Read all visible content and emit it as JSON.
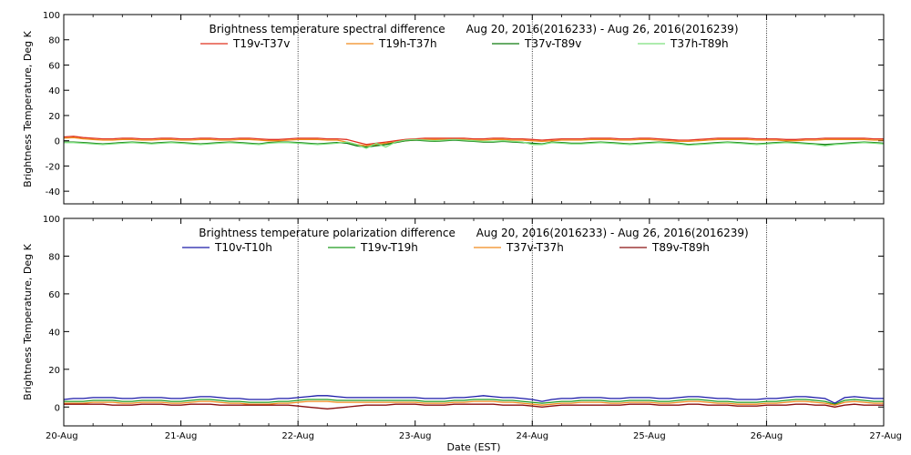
{
  "chart_data": [
    {
      "type": "line",
      "title": "Brightness temperature spectral difference      Aug 20, 2016(2016233) - Aug 26, 2016(2016239)",
      "xlabel": "",
      "ylabel": "Brightness Temperature, Deg K",
      "xlim": [
        0,
        7
      ],
      "ylim": [
        -50,
        100
      ],
      "yticks": [
        -40,
        -20,
        0,
        20,
        40,
        60,
        80,
        100
      ],
      "x_tick_labels": [],
      "day_gridlines": [
        2,
        4,
        6
      ],
      "grid": true,
      "legend_position": "top",
      "series": [
        {
          "name": "T19v-T37v",
          "color": "#e0301e",
          "values": [
            3,
            3.5,
            2.5,
            2,
            1.5,
            1.5,
            2,
            2,
            1.5,
            1.5,
            2,
            2,
            1.5,
            1.5,
            2,
            2,
            1.5,
            1.5,
            2,
            2,
            1.5,
            1,
            1,
            1.5,
            2,
            2,
            2,
            1.5,
            1.5,
            1,
            -1,
            -3,
            -2,
            -1,
            0,
            1,
            1.5,
            2,
            2,
            2,
            2,
            2,
            1.5,
            1.5,
            2,
            2,
            1.5,
            1.5,
            1,
            0.5,
            1,
            1.5,
            1.5,
            1.5,
            2,
            2,
            2,
            1.5,
            1.5,
            2,
            2,
            1.5,
            1,
            0.5,
            0.5,
            1,
            1.5,
            2,
            2,
            2,
            2,
            1.5,
            1.5,
            1.5,
            1,
            1,
            1.5,
            1.5,
            2,
            2,
            2,
            2,
            2,
            1.5,
            1.5
          ]
        },
        {
          "name": "T19h-T37h",
          "color": "#f08a1c",
          "values": [
            2,
            2.5,
            1.5,
            1,
            0.5,
            0.5,
            1,
            1,
            0.5,
            0.5,
            1,
            1,
            0.5,
            0.5,
            1,
            1,
            0.5,
            0.5,
            1,
            1,
            0.5,
            0,
            0,
            0.5,
            1,
            1,
            1,
            0.5,
            0.5,
            -1,
            -3,
            -4,
            -3,
            -2,
            -1,
            0,
            0.5,
            1,
            1,
            1,
            1,
            1,
            0.5,
            0.5,
            1,
            1,
            0.5,
            0.5,
            0,
            -0.5,
            0,
            0.5,
            0.5,
            0.5,
            1,
            1,
            1,
            0.5,
            0.5,
            1,
            1,
            0.5,
            0,
            -0.5,
            -0.5,
            0,
            0.5,
            1,
            1,
            1,
            1,
            0.5,
            0.5,
            0.5,
            0,
            0,
            0.5,
            0.5,
            1,
            1,
            1,
            1,
            1,
            0.5,
            0.5
          ]
        },
        {
          "name": "T37v-T89v",
          "color": "#0f7a0f",
          "values": [
            -1,
            -1,
            -1.5,
            -2,
            -2.5,
            -2,
            -1.5,
            -1,
            -1.5,
            -2,
            -1.5,
            -1,
            -1.5,
            -2,
            -2.5,
            -2,
            -1.5,
            -1,
            -1.5,
            -2,
            -2.5,
            -1.5,
            -1,
            -1,
            -1.5,
            -2,
            -2.5,
            -2,
            -1.5,
            -2,
            -4,
            -5,
            -4,
            -3,
            -1.5,
            0,
            0.5,
            0,
            -0.5,
            0,
            0.5,
            0,
            -0.5,
            -1,
            -1,
            -0.5,
            -1,
            -1.5,
            -2,
            -2.5,
            -1,
            -1.5,
            -2,
            -2,
            -1.5,
            -1,
            -1.5,
            -2,
            -2.5,
            -2,
            -1.5,
            -1,
            -1.5,
            -2,
            -3,
            -2.5,
            -2,
            -1.5,
            -1,
            -1.5,
            -2,
            -2.5,
            -2,
            -1.5,
            -1,
            -1.5,
            -2,
            -2.5,
            -3,
            -2.5,
            -2,
            -1.5,
            -1,
            -1.5,
            -2
          ]
        },
        {
          "name": "T37h-T89h",
          "color": "#7ee07e",
          "values": [
            -1.5,
            -1.5,
            -2,
            -2.5,
            -3,
            -2.5,
            -2,
            -1.5,
            -2,
            -2.5,
            -2,
            -1.5,
            -2,
            -2.5,
            -3,
            -2.5,
            -2,
            -1.5,
            -2,
            -2.5,
            -3,
            -2,
            -1.5,
            -1.5,
            -2,
            -2.5,
            -3,
            -2.5,
            -2,
            -1,
            -3,
            -6,
            -2,
            -5,
            -1,
            0.5,
            1,
            0.5,
            0,
            0.5,
            1,
            0.5,
            0,
            -0.5,
            -0.5,
            0,
            -0.5,
            -1,
            -3,
            -3,
            -1.5,
            -2,
            -2.5,
            -2.5,
            -2,
            -1.5,
            -2,
            -2.5,
            -3,
            -2.5,
            -2,
            -1.5,
            -2,
            -2.5,
            -3.5,
            -3,
            -2.5,
            -2,
            -1.5,
            -2,
            -2.5,
            -3,
            -2.5,
            -2,
            -1.5,
            -2,
            -2.5,
            -3,
            -4,
            -3,
            -2.5,
            -2,
            -1.5,
            -2,
            -2.5
          ]
        }
      ]
    },
    {
      "type": "line",
      "title": "Brightness temperature polarization difference      Aug 20, 2016(2016233) - Aug 26, 2016(2016239)",
      "xlabel": "Date (EST)",
      "ylabel": "Brightness Temperature, Deg K",
      "xlim": [
        0,
        7
      ],
      "ylim": [
        -10,
        100
      ],
      "yticks": [
        0,
        20,
        40,
        60,
        80,
        100
      ],
      "x_tick_labels": [
        "20-Aug",
        "21-Aug",
        "22-Aug",
        "23-Aug",
        "24-Aug",
        "25-Aug",
        "26-Aug",
        "27-Aug"
      ],
      "day_gridlines": [
        2,
        4,
        6
      ],
      "grid": true,
      "legend_position": "top",
      "series": [
        {
          "name": "T10v-T10h",
          "color": "#1a1aa8",
          "values": [
            4,
            4.5,
            4.5,
            5,
            5,
            5,
            4.5,
            4.5,
            5,
            5,
            5,
            4.5,
            4.5,
            5,
            5.5,
            5.5,
            5,
            4.5,
            4.5,
            4,
            4,
            4,
            4.5,
            4.5,
            5,
            5.5,
            6,
            6,
            5.5,
            5,
            5,
            5,
            5,
            5,
            5,
            5,
            5,
            4.5,
            4.5,
            4.5,
            5,
            5,
            5.5,
            6,
            5.5,
            5,
            5,
            4.5,
            4,
            3,
            4,
            4.5,
            4.5,
            5,
            5,
            5,
            4.5,
            4.5,
            5,
            5,
            5,
            4.5,
            4.5,
            5,
            5.5,
            5.5,
            5,
            4.5,
            4.5,
            4,
            4,
            4,
            4.5,
            4.5,
            5,
            5.5,
            5.5,
            5,
            4.5,
            2,
            5,
            5.5,
            5,
            4.5,
            4.5
          ]
        },
        {
          "name": "T19v-T19h",
          "color": "#1f9a1f",
          "values": [
            3,
            3,
            3,
            3.5,
            3.5,
            3.5,
            3,
            3,
            3.5,
            3.5,
            3.5,
            3,
            3,
            3.5,
            4,
            4,
            3.5,
            3,
            3,
            2.5,
            2.5,
            2.5,
            3,
            3,
            3.5,
            4,
            4,
            4,
            3.5,
            3.5,
            3.5,
            3.5,
            3.5,
            3.5,
            3.5,
            3.5,
            3.5,
            3,
            3,
            3,
            3.5,
            3.5,
            4,
            4,
            4,
            3.5,
            3.5,
            3,
            2.5,
            2,
            2.5,
            3,
            3,
            3.5,
            3.5,
            3.5,
            3,
            3,
            3.5,
            3.5,
            3.5,
            3,
            3,
            3.5,
            4,
            4,
            3.5,
            3,
            3,
            2.5,
            2.5,
            2.5,
            3,
            3,
            3.5,
            4,
            4,
            3.5,
            3,
            1.5,
            3.5,
            4,
            3.5,
            3,
            3
          ]
        },
        {
          "name": "T37v-T37h",
          "color": "#f08a1c",
          "values": [
            2,
            2,
            2,
            2.5,
            2.5,
            2.5,
            2,
            2,
            2.5,
            2.5,
            2.5,
            2,
            2,
            2.5,
            3,
            3,
            2.5,
            2,
            2,
            1.5,
            1.5,
            1.5,
            2,
            2,
            2.5,
            3,
            3,
            3,
            2.5,
            2.5,
            2.5,
            2.5,
            2.5,
            2.5,
            2.5,
            2.5,
            2.5,
            2,
            2,
            2,
            2.5,
            2.5,
            3,
            3,
            3,
            2.5,
            2.5,
            2,
            1.5,
            1,
            1.5,
            2,
            2,
            2.5,
            2.5,
            2.5,
            2,
            2,
            2.5,
            2.5,
            2.5,
            2,
            2,
            2.5,
            3,
            3,
            2.5,
            2,
            2,
            1.5,
            1.5,
            1.5,
            2,
            2,
            2.5,
            3,
            3,
            2.5,
            2,
            1,
            2.5,
            3,
            2.5,
            2,
            2
          ]
        },
        {
          "name": "T89v-T89h",
          "color": "#8b1010",
          "values": [
            1.5,
            1.5,
            1.5,
            1.5,
            1.5,
            1,
            1,
            1,
            1.5,
            1.5,
            1.5,
            1,
            1,
            1.5,
            1.5,
            1.5,
            1,
            1,
            1,
            1,
            1,
            1,
            1,
            1,
            0.5,
            0,
            -0.5,
            -1,
            -0.5,
            0,
            0.5,
            1,
            1,
            1,
            1.5,
            1.5,
            1.5,
            1,
            1,
            1,
            1.5,
            1.5,
            1.5,
            1.5,
            1.5,
            1,
            1,
            1,
            0.5,
            0,
            0.5,
            1,
            1,
            1,
            1,
            1,
            1,
            1,
            1.5,
            1.5,
            1.5,
            1,
            1,
            1,
            1.5,
            1.5,
            1,
            1,
            1,
            0.5,
            0.5,
            0.5,
            1,
            1,
            1,
            1.5,
            1.5,
            1,
            1,
            0,
            1,
            1.5,
            1,
            1,
            1
          ]
        }
      ]
    }
  ]
}
